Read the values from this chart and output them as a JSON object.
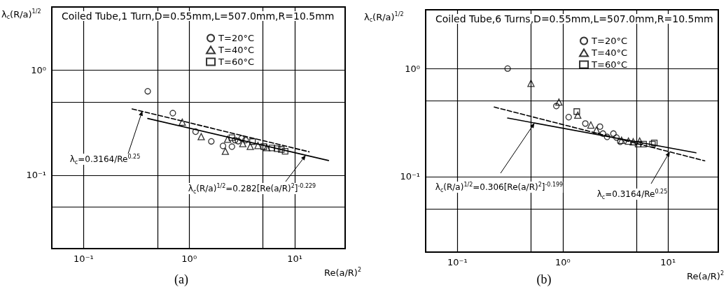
{
  "chart_data": [
    {
      "type": "scatter",
      "title": "Coiled Tube,1 Turn,D=0.55mm,L=507.0mm,R=10.5mm",
      "xlabel": "Re(a/R)$^{2}$",
      "ylabel": "λ$_{c}$(R/a)$^{1/2}$",
      "log": "xy",
      "grid": true,
      "legend": "top right",
      "xlim": [
        0.05,
        30
      ],
      "ylim": [
        0.02,
        4
      ],
      "xticks": [
        {
          "value": 0.1,
          "label": "10⁻¹"
        },
        {
          "value": 0.5,
          "label": null
        },
        {
          "value": 1,
          "label": "10⁰"
        },
        {
          "value": 5,
          "label": null
        },
        {
          "value": 10,
          "label": "10¹"
        }
      ],
      "yticks": [
        {
          "value": 0.05,
          "label": null
        },
        {
          "value": 0.1,
          "label": "10⁻¹"
        },
        {
          "value": 0.5,
          "label": null
        },
        {
          "value": 1,
          "label": "10⁰"
        }
      ],
      "series": [
        {
          "name": "T=20°C",
          "marker": "circle",
          "color": "#000000",
          "x": [
            0.405,
            0.7,
            1.15,
            1.62,
            2.09,
            2.54,
            2.72,
            2.91,
            3.14,
            3.42
          ],
          "values": [
            0.63,
            0.39,
            0.26,
            0.21,
            0.19,
            0.187,
            0.216,
            0.211,
            0.224,
            0.216
          ]
        },
        {
          "name": "T=40°C",
          "marker": "triangle",
          "color": "#000000",
          "x": [
            0.86,
            1.3,
            2.2,
            2.31,
            3.22,
            3.79,
            4.48,
            5.43
          ],
          "values": [
            0.32,
            0.233,
            0.169,
            0.22,
            0.2,
            0.188,
            0.192,
            0.183
          ]
        },
        {
          "name": "T=60°C",
          "marker": "square",
          "color": "#000000",
          "x": [
            2.54,
            3.98,
            5.09,
            6.07,
            6.8,
            7.45,
            8.1
          ],
          "values": [
            0.228,
            0.209,
            0.187,
            0.182,
            0.179,
            0.176,
            0.169
          ]
        },
        {
          "type": "line",
          "marker": "none",
          "line_style": "dashed",
          "color": "#000000",
          "x": [
            0.288,
            13.7
          ],
          "values": [
            0.428,
            0.167
          ]
        },
        {
          "type": "line",
          "marker": "none",
          "line_style": "solid",
          "color": "#000000",
          "x": [
            0.405,
            20.9
          ],
          "values": [
            0.347,
            0.138
          ]
        }
      ],
      "annotations": [
        {
          "text": "λ$_{c}$=0.3164/Re$^{0.25}$",
          "x": 0.36,
          "y": 0.41
        },
        {
          "text": "λ$_{c}$(R/a)$^{1/2}$=0.282[Re(a/R)$^{2}$]$^{-0.229}$",
          "x": 12.7,
          "y": 0.155
        },
        "(a)"
      ]
    },
    {
      "type": "scatter",
      "title": "Coiled Tube,6 Turns,D=0.55mm,L=507.0mm,R=10.5mm",
      "xlabel": "Re(a/R)$^{2}$",
      "ylabel": "λ$_{c}$(R/a)$^{1/2}$",
      "log": "xy",
      "grid": true,
      "legend": "top right",
      "xlim": [
        0.05,
        30
      ],
      "ylim": [
        0.02,
        3.5
      ],
      "xticks": [
        {
          "value": 0.1,
          "label": "10⁻¹"
        },
        {
          "value": 0.5,
          "label": null
        },
        {
          "value": 1,
          "label": "10⁰"
        },
        {
          "value": 5,
          "label": null
        },
        {
          "value": 10,
          "label": "10¹"
        }
      ],
      "yticks": [
        {
          "value": 0.05,
          "label": null
        },
        {
          "value": 0.1,
          "label": "10⁻¹"
        },
        {
          "value": 0.5,
          "label": null
        },
        {
          "value": 1,
          "label": "10⁰"
        }
      ],
      "series": [
        {
          "name": "T=20°C",
          "marker": "circle",
          "color": "#000000",
          "x": [
            0.3,
            0.87,
            1.14,
            1.64,
            2.26,
            2.41,
            2.64,
            3.03,
            3.24,
            3.52
          ],
          "values": [
            1.0,
            0.45,
            0.355,
            0.31,
            0.29,
            0.25,
            0.233,
            0.25,
            0.23,
            0.21
          ]
        },
        {
          "name": "T=40°C",
          "marker": "triangle",
          "color": "#000000",
          "x": [
            0.5,
            0.92,
            1.39,
            1.85,
            2.09,
            3.62,
            4.21,
            4.67,
            5.38
          ],
          "values": [
            0.73,
            0.49,
            0.37,
            0.3,
            0.27,
            0.217,
            0.213,
            0.21,
            0.213
          ]
        },
        {
          "name": "T=60°C",
          "marker": "square",
          "color": "#000000",
          "x": [
            1.36,
            5.2,
            5.86,
            7.11,
            7.4
          ],
          "values": [
            0.4,
            0.2,
            0.2,
            0.2,
            0.205
          ]
        },
        {
          "type": "line",
          "marker": "none",
          "line_style": "dashed",
          "color": "#000000",
          "x": [
            0.224,
            22.3
          ],
          "values": [
            0.44,
            0.14
          ]
        },
        {
          "type": "line",
          "marker": "none",
          "line_style": "solid",
          "color": "#000000",
          "x": [
            0.3,
            18.4
          ],
          "values": [
            0.348,
            0.166
          ]
        }
      ],
      "annotations": [
        {
          "text": "λ$_{c}$(R/a)$^{1/2}$=0.306[Re(a/R)$^{2}$]$^{-0.199}$",
          "x": 0.54,
          "y": 0.313
        },
        {
          "text": "λ$_{c}$=0.3164/Re$^{0.25}$",
          "x": 10.4,
          "y": 0.17
        },
        "(b)"
      ]
    }
  ]
}
